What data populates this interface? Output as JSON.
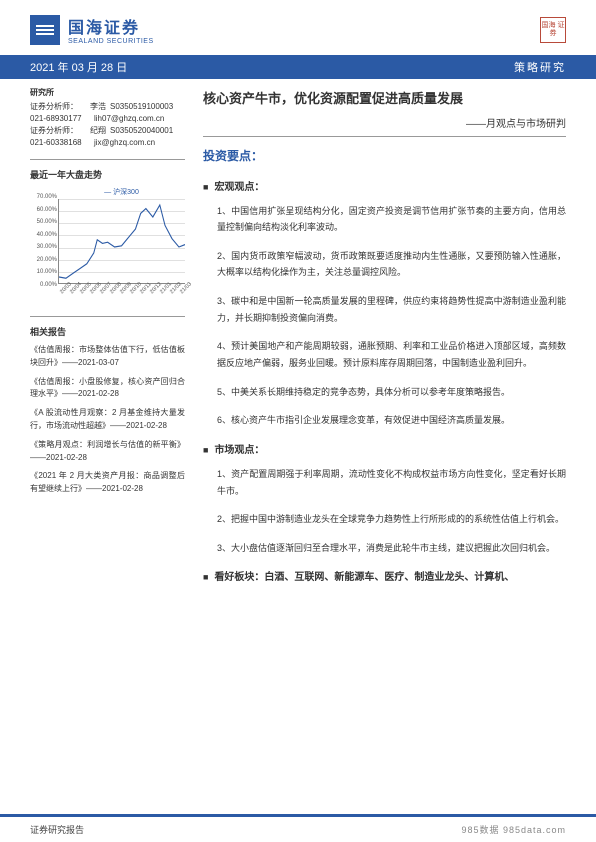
{
  "header": {
    "company_cn": "国海证券",
    "company_en": "SEALAND SECURITIES",
    "seal": "国海\n证券"
  },
  "date_bar": {
    "date": "2021 年 03 月 28 日",
    "category": "策略研究"
  },
  "analysts": {
    "heading": "研究所",
    "rows": [
      {
        "lbl": "证券分析师：",
        "name": "李浩",
        "code": "S0350519100003"
      },
      {
        "lbl": "021-68930177",
        "name": "",
        "code": "lih07@ghzq.com.cn"
      },
      {
        "lbl": "证券分析师：",
        "name": "纪翔",
        "code": "S0350520040001"
      },
      {
        "lbl": "021-60338168",
        "name": "",
        "code": "jix@ghzq.com.cn"
      }
    ]
  },
  "chart": {
    "title": "最近一年大盘走势",
    "legend": "沪深300",
    "y_ticks": [
      "70.00%",
      "60.00%",
      "50.00%",
      "40.00%",
      "30.00%",
      "20.00%",
      "10.00%",
      "0.00%"
    ],
    "x_ticks": [
      "20/03",
      "20/04",
      "20/05",
      "20/06",
      "20/07",
      "20/08",
      "20/09",
      "20/10",
      "20/11",
      "20/12",
      "21/01",
      "21/02",
      "21/03"
    ],
    "line_color": "#2b5aa5",
    "points": [
      [
        0,
        5
      ],
      [
        8,
        4
      ],
      [
        16,
        8
      ],
      [
        24,
        12
      ],
      [
        32,
        16
      ],
      [
        40,
        25
      ],
      [
        44,
        36
      ],
      [
        50,
        33
      ],
      [
        56,
        34
      ],
      [
        64,
        30
      ],
      [
        72,
        31
      ],
      [
        80,
        38
      ],
      [
        88,
        45
      ],
      [
        94,
        58
      ],
      [
        100,
        62
      ],
      [
        108,
        55
      ],
      [
        116,
        65
      ],
      [
        122,
        48
      ],
      [
        130,
        37
      ],
      [
        138,
        30
      ],
      [
        145,
        32
      ]
    ],
    "y_max": 70
  },
  "related": {
    "title": "相关报告",
    "items": [
      "《估值周报：市场整体估值下行，低估值板块回升》——2021-03-07",
      "《估值周报：小盘股修复，核心资产回归合理水平》——2021-02-28",
      "《A 股流动性月观察：2 月基金维持大量发行，市场流动性超越》——2021-02-28",
      "《策略月观点：利润增长与估值的新平衡》——2021-02-28",
      "《2021 年 2 月大类资产月报：商品调整后有望继续上行》——2021-02-28"
    ]
  },
  "main": {
    "title": "核心资产牛市，优化资源配置促进高质量发展",
    "subtitle": "——月观点与市场研判",
    "invest_heading": "投资要点：",
    "blocks": [
      {
        "head": "宏观观点：",
        "paras": [
          "1、中国信用扩张呈现结构分化，固定资产投资是调节信用扩张节奏的主要方向，信用总量控制偏向结构淡化利率波动。",
          "2、国内货币政策窄幅波动，货币政策既要适度推动内生性通胀，又要预防输入性通胀，大概率以结构化操作为主，关注总量调控风险。",
          "3、碳中和是中国新一轮高质量发展的里程碑，供应约束将趋势性提高中游制造业盈利能力，并长期抑制投资偏向消费。",
          "4、预计美国地产和产能周期较弱，通胀预期、利率和工业品价格进入顶部区域，高频数据反应地产偏弱，服务业回暖。预计原料库存周期回落，中国制造业盈利回升。",
          "5、中美关系长期维持稳定的竞争态势，具体分析可以参考年度策略报告。",
          "6、核心资产牛市指引企业发展理念变革，有效促进中国经济高质量发展。"
        ]
      },
      {
        "head": "市场观点：",
        "paras": [
          "1、资产配置周期强于利率周期，流动性变化不构成权益市场方向性变化，坚定看好长期牛市。",
          "2、把握中国中游制造业龙头在全球竞争力趋势性上行所形成的的系统性估值上行机会。",
          "3、大小盘估值逐渐回归至合理水平，消费是此轮牛市主线，建议把握此次回归机会。"
        ]
      },
      {
        "head": "看好板块：白酒、互联网、新能源车、医疗、制造业龙头、计算机、",
        "paras": []
      }
    ]
  },
  "footer": {
    "left": "证券研究报告",
    "right": "985数据 985data.com"
  },
  "colors": {
    "brand": "#2b5aa5",
    "seal": "#b84a3a",
    "text": "#333333",
    "grid": "#e0e0e0"
  }
}
